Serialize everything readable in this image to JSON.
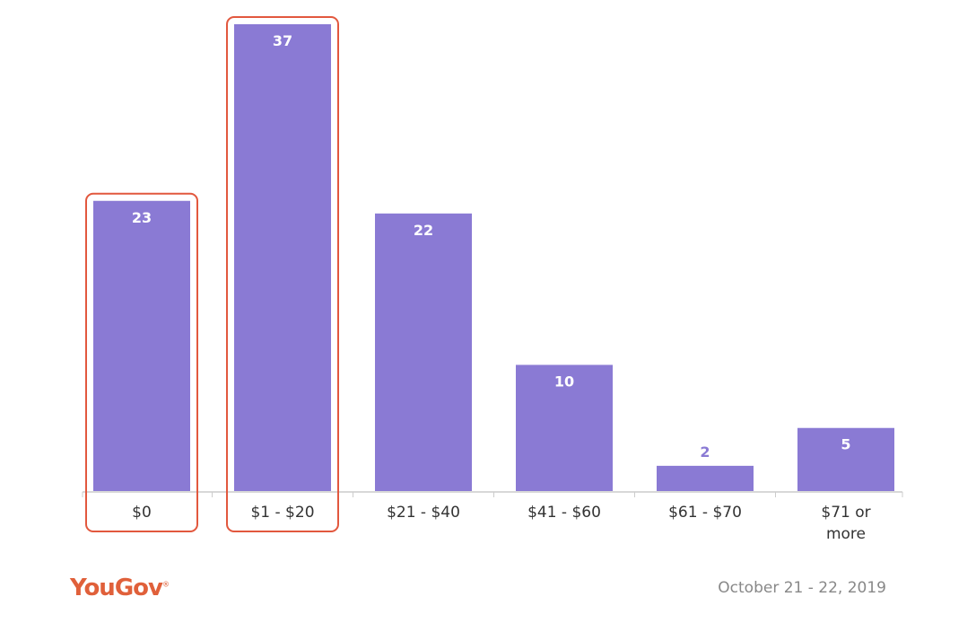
{
  "chart_data": {
    "type": "bar",
    "categories": [
      "$0",
      "$1 - $20",
      "$21 - $40",
      "$41 - $60",
      "$61 - $70",
      "$71 or more"
    ],
    "values": [
      23,
      37,
      22,
      10,
      2,
      5
    ],
    "highlighted_categories": [
      "$0",
      "$1 - $20"
    ],
    "ylim": [
      0,
      37
    ],
    "grid": false,
    "colors": {
      "bar": "#8a7ad4",
      "highlight_outline": "#e2583e",
      "label_inside": "#ffffff",
      "label_outside": "#8a7ad4",
      "axis": "#cccccc"
    }
  },
  "footer": {
    "brand": "YouGov",
    "brand_mark": "®",
    "date": "October 21 - 22, 2019"
  }
}
